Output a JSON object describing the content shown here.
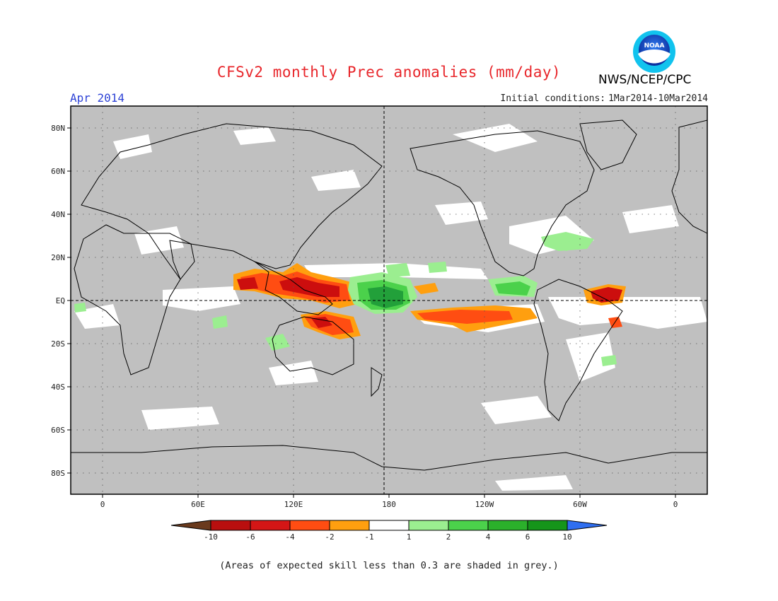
{
  "title": "CFSv2 monthly Prec anomalies (mm/day)",
  "agency": "NWS/NCEP/CPC",
  "logo_text": "NOAA",
  "valid_month": "Apr 2014",
  "initial_conditions": {
    "label": "Initial conditions:",
    "range": "1Mar2014-10Mar2014"
  },
  "footnote": "(Areas of expected skill less than 0.3 are shaded in grey.)",
  "map": {
    "lon_range": [
      -20,
      380
    ],
    "lat_range": [
      -90,
      90
    ],
    "lat_ticks": [
      {
        "value": 80,
        "label": "80N"
      },
      {
        "value": 60,
        "label": "60N"
      },
      {
        "value": 40,
        "label": "40N"
      },
      {
        "value": 20,
        "label": "20N"
      },
      {
        "value": 0,
        "label": "EQ"
      },
      {
        "value": -20,
        "label": "20S"
      },
      {
        "value": -40,
        "label": "40S"
      },
      {
        "value": -60,
        "label": "60S"
      },
      {
        "value": -80,
        "label": "80S"
      }
    ],
    "lon_ticks": [
      {
        "value": 0,
        "label": "0"
      },
      {
        "value": 60,
        "label": "60E"
      },
      {
        "value": 120,
        "label": "120E"
      },
      {
        "value": 180,
        "label": "180"
      },
      {
        "value": 240,
        "label": "120W"
      },
      {
        "value": 300,
        "label": "60W"
      },
      {
        "value": 360,
        "label": "0"
      }
    ],
    "colors": {
      "skill_mask": "#c0c0c0",
      "wet_strong": "#22a03a",
      "wet_moderate": "#4bd14b",
      "wet_light": "#9bee90",
      "dry_light": "#ff9f0f",
      "dry_moderate": "#ff4d12",
      "dry_strong": "#cc0e0e"
    }
  },
  "colorbar": {
    "labels": [
      "-10",
      "-6",
      "-4",
      "-2",
      "-1",
      "1",
      "2",
      "4",
      "6",
      "10"
    ],
    "colors": [
      "#6a3a1d",
      "#b90f0f",
      "#d41616",
      "#ff4d12",
      "#ff9f0f",
      "#ffffff",
      "#9bee90",
      "#4bd14b",
      "#2bb02b",
      "#15951a",
      "#2f6ef0"
    ]
  }
}
